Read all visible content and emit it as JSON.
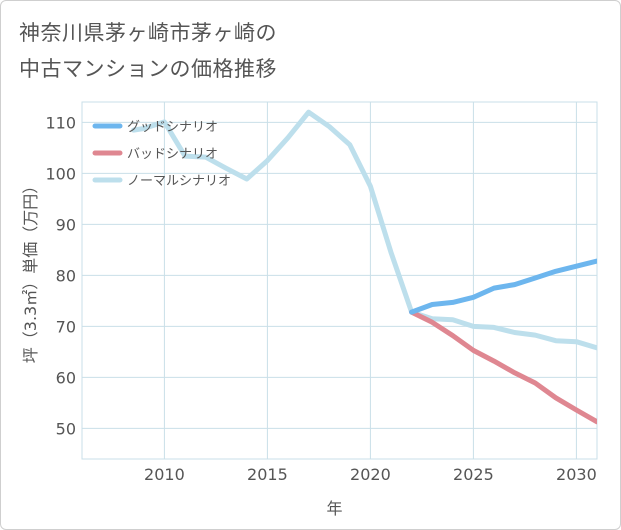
{
  "title_lines": [
    "神奈川県茅ヶ崎市茅ヶ崎の",
    "中古マンションの価格推移"
  ],
  "chart_data": {
    "type": "line",
    "title": "神奈川県茅ヶ崎市茅ヶ崎の中古マンションの価格推移",
    "xlabel": "年",
    "ylabel": "坪（3.3㎡）単価（万円）",
    "xlim": [
      2006,
      2031
    ],
    "ylim": [
      44,
      114
    ],
    "x_ticks": [
      2010,
      2015,
      2020,
      2025,
      2030
    ],
    "y_ticks": [
      50,
      60,
      70,
      80,
      90,
      100,
      110
    ],
    "grid": true,
    "legend_position": "top-left",
    "series": [
      {
        "name": "グッドシナリオ",
        "color": "#6db6ee",
        "x": [
          2022,
          2023,
          2024,
          2025,
          2026,
          2027,
          2028,
          2029,
          2030,
          2031
        ],
        "y": [
          72.8,
          74.3,
          74.7,
          75.7,
          77.5,
          78.2,
          79.5,
          80.8,
          81.8,
          82.8
        ]
      },
      {
        "name": "バッドシナリオ",
        "color": "#df8791",
        "x": [
          2022,
          2023,
          2024,
          2025,
          2026,
          2027,
          2028,
          2029,
          2030,
          2031
        ],
        "y": [
          72.8,
          70.8,
          68.2,
          65.3,
          63.2,
          60.9,
          58.9,
          56.0,
          53.6,
          51.3
        ]
      },
      {
        "name": "ノーマルシナリオ",
        "color": "#bddfec",
        "x": [
          2008.5,
          2009,
          2010,
          2011,
          2012,
          2013,
          2014,
          2015,
          2016,
          2017,
          2018,
          2019,
          2020,
          2021,
          2022,
          2023,
          2024,
          2025,
          2026,
          2027,
          2028,
          2029,
          2030,
          2031
        ],
        "y": [
          108.5,
          108.8,
          110.1,
          103.4,
          103.2,
          101.0,
          98.9,
          102.5,
          107.0,
          112.0,
          109.2,
          105.6,
          97.5,
          84.5,
          72.8,
          71.5,
          71.3,
          70.0,
          69.8,
          68.8,
          68.3,
          67.2,
          67.0,
          65.8
        ]
      }
    ]
  }
}
